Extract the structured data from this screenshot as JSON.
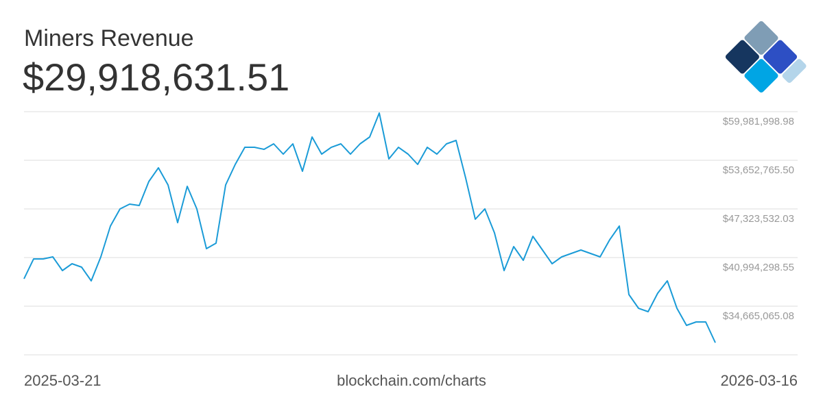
{
  "chart_data": {
    "type": "line",
    "title": "Miners Revenue",
    "headline": "$29,918,631.51",
    "source": "blockchain.com/charts",
    "x": [
      "2025-03-21",
      "2025-03-26",
      "2025-03-31",
      "2025-04-05",
      "2025-04-10",
      "2025-04-15",
      "2025-04-20",
      "2025-04-25",
      "2025-04-30",
      "2025-05-05",
      "2025-05-10",
      "2025-05-15",
      "2025-05-20",
      "2025-05-25",
      "2025-05-30",
      "2025-06-04",
      "2025-06-09",
      "2025-06-14",
      "2025-06-19",
      "2025-06-24",
      "2025-06-29",
      "2025-07-04",
      "2025-07-09",
      "2025-07-14",
      "2025-07-19",
      "2025-07-24",
      "2025-07-29",
      "2025-08-03",
      "2025-08-08",
      "2025-08-13",
      "2025-08-18",
      "2025-08-23",
      "2025-08-28",
      "2025-09-02",
      "2025-09-07",
      "2025-09-12",
      "2025-09-17",
      "2025-09-22",
      "2025-09-27",
      "2025-10-02",
      "2025-10-07",
      "2025-10-12",
      "2025-10-17",
      "2025-10-22",
      "2025-10-27",
      "2025-11-01",
      "2025-11-06",
      "2025-11-11",
      "2025-11-16",
      "2025-11-21",
      "2025-11-26",
      "2025-12-01",
      "2025-12-06",
      "2025-12-11",
      "2025-12-16",
      "2025-12-21",
      "2025-12-26",
      "2025-12-31",
      "2026-01-05",
      "2026-01-10",
      "2026-01-15",
      "2026-01-20",
      "2026-01-25",
      "2026-01-30",
      "2026-02-04",
      "2026-02-09",
      "2026-02-14",
      "2026-02-19",
      "2026-02-24",
      "2026-03-01",
      "2026-03-06",
      "2026-03-11",
      "2026-03-16"
    ],
    "series": [
      {
        "name": "Miners Revenue",
        "color": "#1a9bd7",
        "values": [
          38231000,
          40816000,
          40816000,
          41083000,
          39301000,
          40192000,
          39746000,
          37963000,
          41083000,
          45095000,
          47324000,
          47948000,
          47769000,
          50889000,
          52672000,
          50444000,
          45541000,
          50265000,
          47324000,
          42153000,
          42866000,
          50444000,
          53118000,
          55346000,
          55346000,
          55079000,
          55792000,
          54455000,
          55792000,
          52226000,
          56684000,
          54455000,
          55346000,
          55792000,
          54455000,
          55792000,
          56684000,
          59804000,
          53831000,
          55346000,
          54455000,
          53118000,
          55346000,
          54455000,
          55792000,
          56238000,
          51335000,
          45986000,
          47324000,
          44203000,
          39301000,
          42421000,
          40638000,
          43758000,
          41975000,
          40192000,
          41083000,
          41529000,
          41975000,
          41529000,
          41083000,
          43312000,
          45095000,
          36181000,
          34397000,
          33952000,
          36359000,
          37963000,
          34397000,
          32169000,
          32615000,
          32615000,
          29918631.51
        ]
      }
    ],
    "xlim": [
      "2025-03-21",
      "2026-03-16"
    ],
    "xticks": [
      "2025-03-21",
      "2026-03-16"
    ],
    "ylim": [
      28335831.6,
      59981998.98
    ],
    "yticks": [
      {
        "value": 34665065.08,
        "label": "$34,665,065.08"
      },
      {
        "value": 40994298.55,
        "label": "$40,994,298.55"
      },
      {
        "value": 47323532.03,
        "label": "$47,323,532.03"
      },
      {
        "value": 53652765.5,
        "label": "$53,652,765.50"
      },
      {
        "value": 59981998.98,
        "label": "$59,981,998.98"
      }
    ],
    "grid": true
  }
}
